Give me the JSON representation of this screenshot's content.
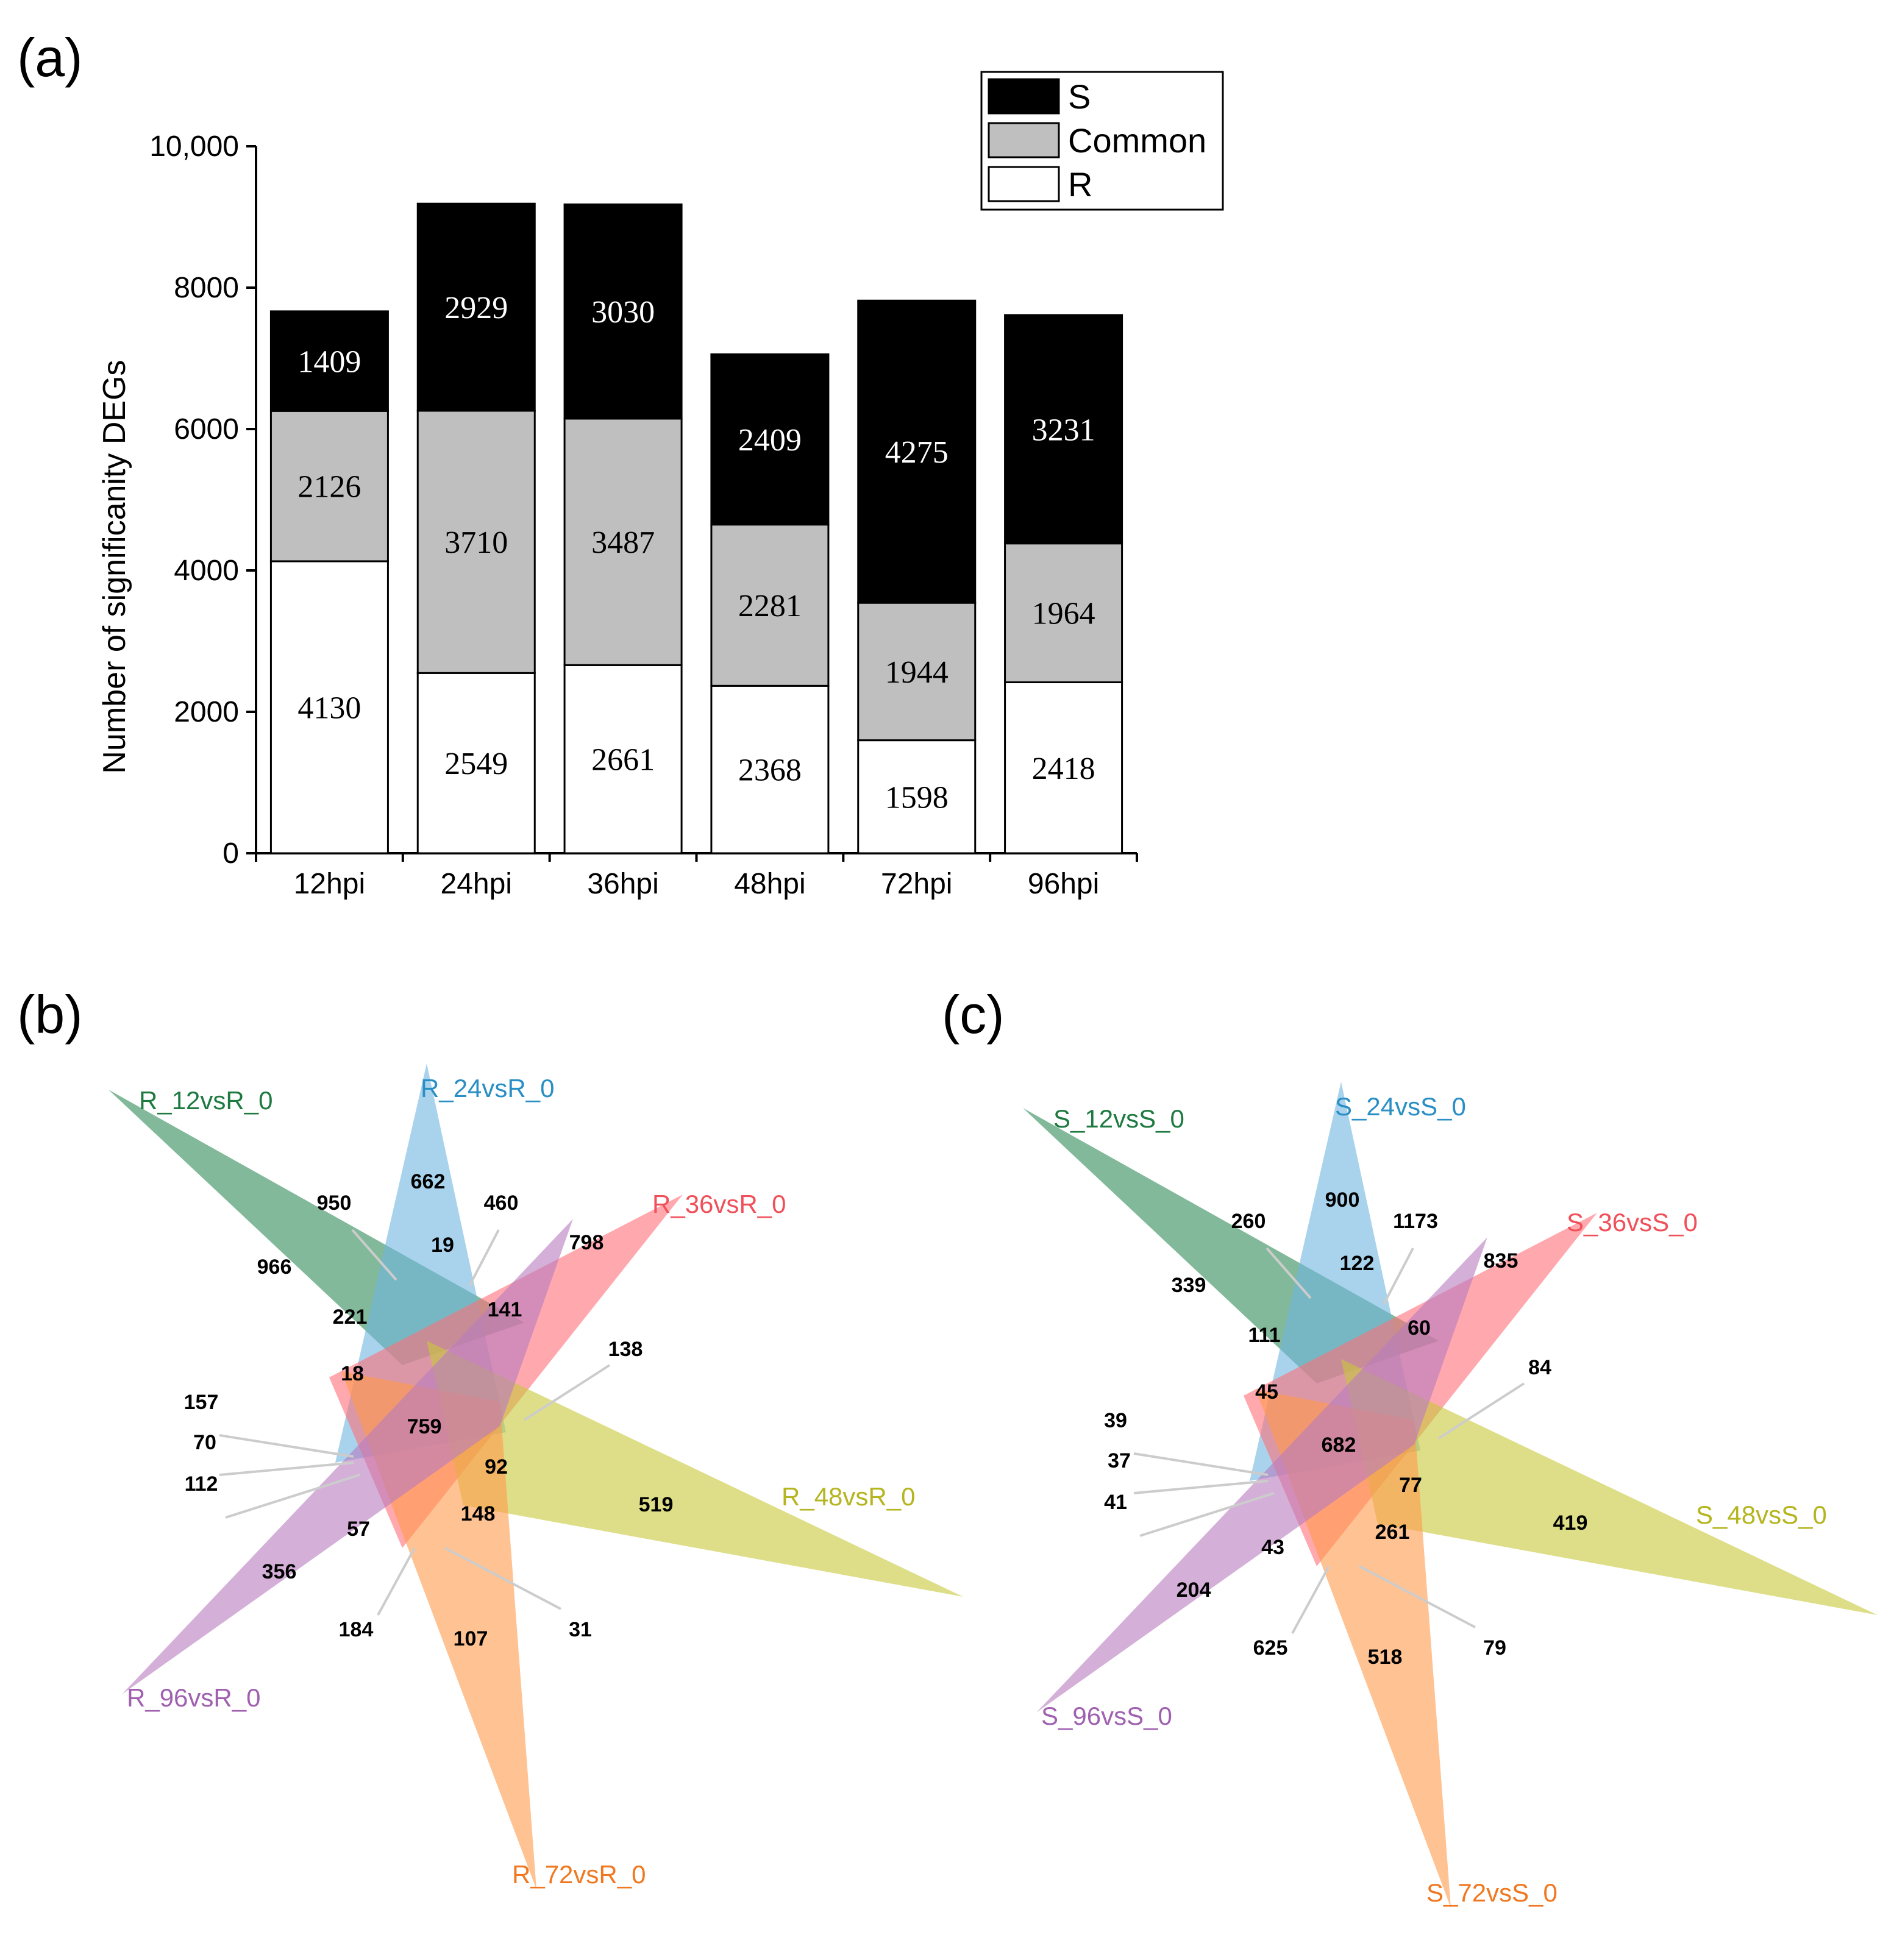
{
  "panels": {
    "a": "(a)",
    "b": "(b)",
    "c": "(c)"
  },
  "chart_data": [
    {
      "type": "bar",
      "stacked": true,
      "title": "",
      "xlabel": "",
      "ylabel": "Number of significanity DEGs",
      "ylim": [
        0,
        10000
      ],
      "yticks": [
        "0",
        "2000",
        "4000",
        "6000",
        "8000",
        "10,000"
      ],
      "categories": [
        "12hpi",
        "24hpi",
        "36hpi",
        "48hpi",
        "72hpi",
        "96hpi"
      ],
      "series": [
        {
          "name": "R",
          "color": "#ffffff",
          "label_color": "#000000",
          "values": [
            4130,
            2549,
            2661,
            2368,
            1598,
            2418
          ]
        },
        {
          "name": "Common",
          "color": "#bfbfbf",
          "label_color": "#000000",
          "values": [
            2126,
            3710,
            3487,
            2281,
            1944,
            1964
          ]
        },
        {
          "name": "S",
          "color": "#000000",
          "label_color": "#ffffff",
          "values": [
            1409,
            2929,
            3030,
            2409,
            4275,
            3231
          ]
        }
      ],
      "legend": {
        "position": "top-right",
        "order": [
          "S",
          "Common",
          "R"
        ]
      }
    },
    {
      "type": "venn",
      "panel": "b",
      "sets": [
        {
          "name": "R_12vsR_0",
          "color": "#2e8b57",
          "label_color": "#1e7a40"
        },
        {
          "name": "R_24vsR_0",
          "color": "#6fb6e0",
          "label_color": "#2a8fc4"
        },
        {
          "name": "R_36vsR_0",
          "color": "#ff6f7a",
          "label_color": "#f0505a"
        },
        {
          "name": "R_48vsR_0",
          "color": "#c8c83a",
          "label_color": "#b5b520"
        },
        {
          "name": "R_72vsR_0",
          "color": "#ff9a4a",
          "label_color": "#f07820"
        },
        {
          "name": "R_96vsR_0",
          "color": "#b77bc0",
          "label_color": "#a060b0"
        }
      ],
      "regions": [
        "966",
        "662",
        "798",
        "519",
        "107",
        "356",
        "950",
        "460",
        "19",
        "221",
        "141",
        "138",
        "18",
        "759",
        "157",
        "70",
        "112",
        "92",
        "57",
        "148",
        "184",
        "31"
      ]
    },
    {
      "type": "venn",
      "panel": "c",
      "sets": [
        {
          "name": "S_12vsS_0",
          "color": "#2e8b57",
          "label_color": "#1e7a40"
        },
        {
          "name": "S_24vsS_0",
          "color": "#6fb6e0",
          "label_color": "#2a8fc4"
        },
        {
          "name": "S_36vsS_0",
          "color": "#ff6f7a",
          "label_color": "#f0505a"
        },
        {
          "name": "S_48vsS_0",
          "color": "#c8c83a",
          "label_color": "#b5b520"
        },
        {
          "name": "S_72vsS_0",
          "color": "#ff9a4a",
          "label_color": "#f07820"
        },
        {
          "name": "S_96vsS_0",
          "color": "#b77bc0",
          "label_color": "#a060b0"
        }
      ],
      "regions": [
        "339",
        "900",
        "835",
        "419",
        "518",
        "204",
        "260",
        "1173",
        "122",
        "111",
        "60",
        "84",
        "45",
        "682",
        "39",
        "37",
        "41",
        "77",
        "43",
        "261",
        "625",
        "79"
      ]
    }
  ]
}
